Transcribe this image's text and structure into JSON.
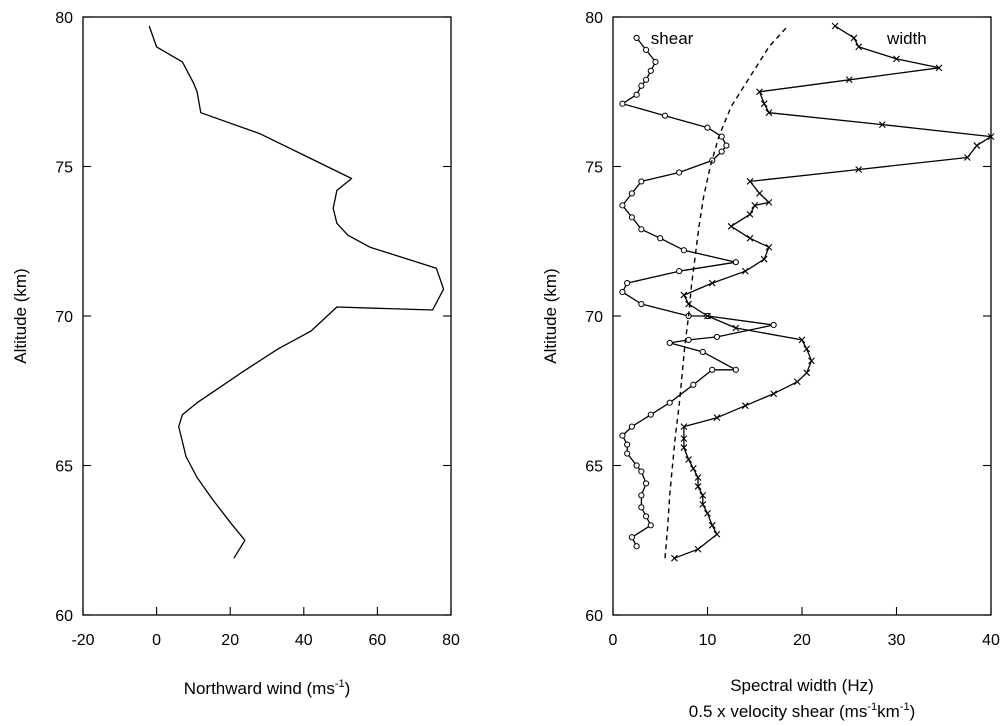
{
  "chart_data": [
    {
      "type": "line",
      "xlabel": "Northward wind (ms",
      "xlabel_sup": "-1",
      "xlabel_end": ")",
      "ylabel": "Altitude (km)",
      "xlim": [
        -20,
        80
      ],
      "ylim": [
        60,
        80
      ],
      "xticks": [
        "-20",
        "0",
        "20",
        "40",
        "60",
        "80"
      ],
      "yticks": [
        "60",
        "65",
        "70",
        "75",
        "80"
      ],
      "grid": false,
      "series": [
        {
          "style": "solid",
          "points": [
            [
              21,
              61.9
            ],
            [
              24,
              62.5
            ],
            [
              20,
              63.1
            ],
            [
              15,
              63.9
            ],
            [
              11,
              64.6
            ],
            [
              8,
              65.3
            ],
            [
              7,
              65.8
            ],
            [
              6,
              66.3
            ],
            [
              7,
              66.7
            ],
            [
              11,
              67.1
            ],
            [
              17,
              67.6
            ],
            [
              23,
              68.1
            ],
            [
              33,
              68.9
            ],
            [
              42,
              69.5
            ],
            [
              49,
              70.3
            ],
            [
              75,
              70.2
            ],
            [
              78,
              70.9
            ],
            [
              76,
              71.6
            ],
            [
              58,
              72.3
            ],
            [
              52,
              72.7
            ],
            [
              49,
              73.1
            ],
            [
              48,
              73.6
            ],
            [
              49,
              74.2
            ],
            [
              53,
              74.6
            ],
            [
              43,
              75.2
            ],
            [
              28,
              76.1
            ],
            [
              12,
              76.8
            ],
            [
              11,
              77.5
            ],
            [
              10,
              77.8
            ],
            [
              7,
              78.5
            ],
            [
              0,
              79.0
            ],
            [
              -2,
              79.7
            ]
          ]
        }
      ]
    },
    {
      "type": "line",
      "xlabel": "Spectral width (Hz)",
      "xlabel2": "0.5 x velocity shear (ms",
      "xlabel2_sup1": "-1",
      "xlabel2_mid": "km",
      "xlabel2_sup2": "-1",
      "xlabel2_end": ")",
      "ylabel": "Altitude (km)",
      "xlim": [
        0,
        40
      ],
      "ylim": [
        60,
        80
      ],
      "xticks": [
        "0",
        "10",
        "20",
        "30",
        "40"
      ],
      "yticks": [
        "60",
        "65",
        "70",
        "75",
        "80"
      ],
      "grid": false,
      "annotations": [
        {
          "text": "shear",
          "x": 4.0,
          "y": 79.1
        },
        {
          "text": "width",
          "x": 29.0,
          "y": 79.1
        }
      ],
      "series": [
        {
          "name": "shear",
          "style": "solid",
          "marker": "o",
          "points": [
            [
              2.5,
              62.3
            ],
            [
              2.0,
              62.6
            ],
            [
              4.0,
              63.0
            ],
            [
              3.5,
              63.3
            ],
            [
              3.0,
              63.6
            ],
            [
              3.0,
              64.0
            ],
            [
              3.5,
              64.4
            ],
            [
              3.0,
              64.8
            ],
            [
              2.5,
              65.0
            ],
            [
              1.5,
              65.4
            ],
            [
              1.5,
              65.7
            ],
            [
              1.0,
              66.0
            ],
            [
              2.0,
              66.3
            ],
            [
              4.0,
              66.7
            ],
            [
              6.0,
              67.1
            ],
            [
              8.5,
              67.7
            ],
            [
              10.5,
              68.2
            ],
            [
              13.0,
              68.2
            ],
            [
              9.5,
              68.8
            ],
            [
              6.0,
              69.1
            ],
            [
              8.0,
              69.2
            ],
            [
              11.0,
              69.3
            ],
            [
              17.0,
              69.7
            ],
            [
              10.0,
              70.0
            ],
            [
              8.0,
              70.0
            ],
            [
              3.0,
              70.4
            ],
            [
              1.0,
              70.8
            ],
            [
              1.5,
              71.1
            ],
            [
              7.0,
              71.5
            ],
            [
              13.0,
              71.8
            ],
            [
              7.5,
              72.2
            ],
            [
              5.0,
              72.6
            ],
            [
              3.0,
              72.9
            ],
            [
              2.0,
              73.3
            ],
            [
              1.0,
              73.7
            ],
            [
              2.0,
              74.1
            ],
            [
              3.0,
              74.5
            ],
            [
              7.0,
              74.8
            ],
            [
              10.5,
              75.2
            ],
            [
              11.5,
              75.5
            ],
            [
              12.0,
              75.7
            ],
            [
              11.5,
              76.0
            ],
            [
              10.0,
              76.3
            ],
            [
              5.5,
              76.7
            ],
            [
              1.0,
              77.1
            ],
            [
              2.5,
              77.4
            ],
            [
              3.0,
              77.7
            ],
            [
              3.5,
              77.9
            ],
            [
              4.0,
              78.2
            ],
            [
              4.5,
              78.5
            ],
            [
              3.5,
              78.9
            ],
            [
              2.5,
              79.3
            ]
          ]
        },
        {
          "name": "width",
          "style": "solid",
          "marker": "x",
          "points": [
            [
              6.5,
              61.9
            ],
            [
              9.0,
              62.2
            ],
            [
              11.0,
              62.7
            ],
            [
              10.5,
              63.0
            ],
            [
              10.0,
              63.4
            ],
            [
              9.5,
              63.7
            ],
            [
              9.5,
              64.0
            ],
            [
              9.0,
              64.3
            ],
            [
              9.0,
              64.6
            ],
            [
              8.5,
              64.9
            ],
            [
              8.0,
              65.2
            ],
            [
              7.5,
              65.6
            ],
            [
              7.5,
              65.9
            ],
            [
              7.5,
              66.3
            ],
            [
              11.0,
              66.6
            ],
            [
              14.0,
              67.0
            ],
            [
              17.0,
              67.4
            ],
            [
              19.5,
              67.8
            ],
            [
              20.5,
              68.1
            ],
            [
              21.0,
              68.5
            ],
            [
              20.5,
              68.9
            ],
            [
              20.0,
              69.2
            ],
            [
              13.0,
              69.6
            ],
            [
              10.0,
              70.0
            ],
            [
              8.0,
              70.4
            ],
            [
              7.5,
              70.7
            ],
            [
              10.5,
              71.1
            ],
            [
              14.0,
              71.5
            ],
            [
              16.0,
              71.9
            ],
            [
              16.5,
              72.3
            ],
            [
              14.5,
              72.6
            ],
            [
              12.5,
              73.0
            ],
            [
              14.5,
              73.4
            ],
            [
              15.0,
              73.7
            ],
            [
              16.5,
              73.8
            ],
            [
              15.5,
              74.1
            ],
            [
              14.5,
              74.5
            ],
            [
              26.0,
              74.9
            ],
            [
              37.5,
              75.3
            ],
            [
              38.5,
              75.7
            ],
            [
              40.0,
              76.0
            ],
            [
              28.5,
              76.4
            ],
            [
              16.5,
              76.8
            ],
            [
              16.0,
              77.1
            ],
            [
              15.5,
              77.5
            ],
            [
              25.0,
              77.9
            ],
            [
              34.5,
              78.3
            ],
            [
              30.0,
              78.6
            ],
            [
              26.0,
              79.0
            ],
            [
              25.5,
              79.3
            ],
            [
              23.5,
              79.7
            ]
          ]
        },
        {
          "style": "dashed",
          "points": [
            [
              5.5,
              61.9
            ],
            [
              5.8,
              63.0
            ],
            [
              6.0,
              64.0
            ],
            [
              6.3,
              65.0
            ],
            [
              6.6,
              66.0
            ],
            [
              7.0,
              67.0
            ],
            [
              7.3,
              68.0
            ],
            [
              7.6,
              69.0
            ],
            [
              8.0,
              70.0
            ],
            [
              8.3,
              71.0
            ],
            [
              8.7,
              72.0
            ],
            [
              9.1,
              73.0
            ],
            [
              9.6,
              74.0
            ],
            [
              10.3,
              75.0
            ],
            [
              11.2,
              76.0
            ],
            [
              12.5,
              77.0
            ],
            [
              14.5,
              78.0
            ],
            [
              16.5,
              79.0
            ],
            [
              18.5,
              79.7
            ]
          ]
        }
      ]
    }
  ]
}
